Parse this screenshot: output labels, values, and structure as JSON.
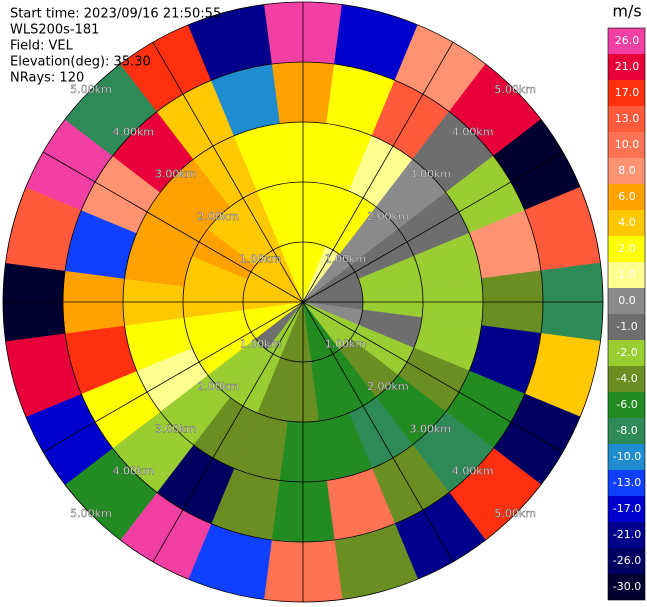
{
  "chart_data": {
    "type": "ppi",
    "header": [
      "Start time: 2023/09/16 21:50:55",
      "WLS200s-181",
      "Field: VEL",
      "Elevation(deg): 35.30",
      "NRays: 120"
    ],
    "unit": "m/s",
    "rlim": [
      0,
      5
    ],
    "azimuths": [
      0,
      15,
      30,
      45,
      60,
      75,
      90,
      105,
      120,
      135,
      150,
      165,
      180,
      195,
      210,
      225,
      240,
      255,
      270,
      285,
      300,
      315,
      330,
      345
    ],
    "range_bins": [
      0,
      1,
      2,
      3,
      4,
      5
    ],
    "values": [
      [
        2,
        2,
        1,
        0,
        -1,
        -1,
        -1,
        0,
        -2,
        -2,
        -6,
        -6,
        -4,
        -4,
        -2,
        -1,
        2,
        2,
        4,
        4,
        4,
        4,
        4,
        2
      ],
      [
        2,
        2,
        2,
        0,
        -1,
        -2,
        -2,
        -1,
        -2,
        -4,
        -6,
        -6,
        -4,
        -4,
        -2,
        -2,
        2,
        2,
        4,
        4,
        6,
        4,
        4,
        2
      ],
      [
        2,
        2,
        1,
        0,
        -1,
        -2,
        -2,
        -2,
        -4,
        -6,
        -8,
        -6,
        -6,
        -4,
        -4,
        -2,
        1,
        2,
        4,
        6,
        6,
        6,
        4,
        2
      ],
      [
        6,
        2,
        13,
        -1,
        -2,
        8,
        -4,
        -21,
        -6,
        -8,
        -4,
        10,
        -6,
        -4,
        -26,
        -2,
        2,
        17,
        6,
        -13,
        8,
        21,
        4,
        -10
      ],
      [
        26,
        -17,
        8,
        21,
        -30,
        13,
        -8,
        4,
        -26,
        17,
        -21,
        -4,
        10,
        -13,
        26,
        -6,
        -17,
        21,
        -30,
        13,
        26,
        -8,
        17,
        -21
      ]
    ],
    "rings": [
      {
        "value": 1,
        "label": "1.00km"
      },
      {
        "value": 2,
        "label": "2.00km"
      },
      {
        "value": 3,
        "label": "3.00km"
      },
      {
        "value": 4,
        "label": "4.00km"
      },
      {
        "value": 5,
        "label": "5.00km"
      }
    ],
    "colorbar": {
      "ticks": [
        {
          "value": 26,
          "label": "26.0"
        },
        {
          "value": 21,
          "label": "21.0"
        },
        {
          "value": 17,
          "label": "17.0"
        },
        {
          "value": 13,
          "label": "13.0"
        },
        {
          "value": 10,
          "label": "10.0"
        },
        {
          "value": 8,
          "label": "8.0"
        },
        {
          "value": 6,
          "label": "6.0"
        },
        {
          "value": 4,
          "label": "4.0"
        },
        {
          "value": 2,
          "label": "2.0"
        },
        {
          "value": 1,
          "label": "1.0"
        },
        {
          "value": 0,
          "label": "0.0"
        },
        {
          "value": -1,
          "label": "-1.0"
        },
        {
          "value": -2,
          "label": "-2.0"
        },
        {
          "value": -4,
          "label": "-4.0"
        },
        {
          "value": -6,
          "label": "-6.0"
        },
        {
          "value": -8,
          "label": "-8.0"
        },
        {
          "value": -10,
          "label": "-10.0"
        },
        {
          "value": -13,
          "label": "-13.0"
        },
        {
          "value": -17,
          "label": "-17.0"
        },
        {
          "value": -21,
          "label": "-21.0"
        },
        {
          "value": -26,
          "label": "-26.0"
        },
        {
          "value": -30,
          "label": "-30.0"
        }
      ],
      "colors": [
        "#f23fa3",
        "#e8003a",
        "#ff3010",
        "#ff5a3c",
        "#ff7355",
        "#ff9270",
        "#ffa200",
        "#ffc800",
        "#ffff00",
        "#ffff90",
        "#8a8a8a",
        "#6e6e6e",
        "#9acd32",
        "#6b8e23",
        "#228b22",
        "#2e8b57",
        "#1e8ccf",
        "#1040ff",
        "#0000cd",
        "#00008b",
        "#000060",
        "#000030"
      ]
    }
  }
}
